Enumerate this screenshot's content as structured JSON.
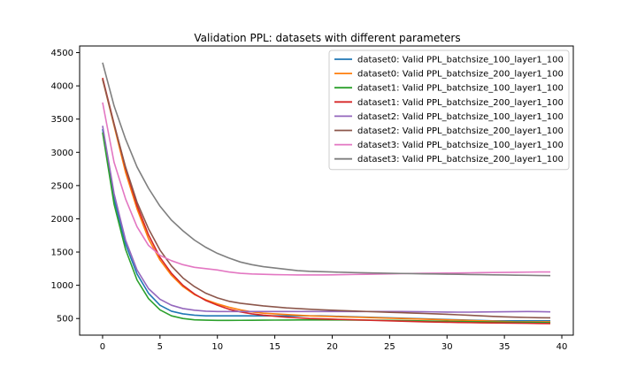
{
  "chart_data": {
    "type": "line",
    "title": "Validation PPL: datasets with different parameters",
    "xlabel": "",
    "ylabel": "",
    "xlim": [
      -2,
      41
    ],
    "ylim": [
      250,
      4600
    ],
    "xticks": [
      0,
      5,
      10,
      15,
      20,
      25,
      30,
      35,
      40
    ],
    "yticks": [
      500,
      1000,
      1500,
      2000,
      2500,
      3000,
      3500,
      4000,
      4500
    ],
    "grid": false,
    "legend_position": "top-right",
    "series": [
      {
        "name": "dataset0: Valid PPL_batchsize_100_layer1_100",
        "color": "#1f77b4",
        "x": [
          0,
          1,
          2,
          3,
          4,
          5,
          6,
          7,
          8,
          9,
          10,
          11,
          12,
          13,
          14,
          15,
          16,
          17,
          18,
          19,
          20,
          21,
          22,
          23,
          24,
          25,
          26,
          27,
          28,
          29,
          30,
          31,
          32,
          33,
          34,
          35,
          36,
          37,
          38,
          39
        ],
        "y": [
          3350,
          2300,
          1620,
          1170,
          880,
          700,
          610,
          570,
          550,
          540,
          540,
          540,
          540,
          540,
          540,
          540,
          540,
          540,
          540,
          540,
          535,
          530,
          525,
          520,
          515,
          510,
          505,
          500,
          495,
          490,
          485,
          480,
          475,
          470,
          465,
          465,
          465,
          465,
          465,
          465
        ]
      },
      {
        "name": "dataset0: Valid PPL_batchsize_200_layer1_100",
        "color": "#ff7f0e",
        "x": [
          0,
          1,
          2,
          3,
          4,
          5,
          6,
          7,
          8,
          9,
          10,
          11,
          12,
          13,
          14,
          15,
          16,
          17,
          18,
          19,
          20,
          21,
          22,
          23,
          24,
          25,
          26,
          27,
          28,
          29,
          30,
          31,
          32,
          33,
          34,
          35,
          36,
          37,
          38,
          39
        ],
        "y": [
          4100,
          3400,
          2700,
          2150,
          1700,
          1380,
          1150,
          980,
          860,
          780,
          720,
          670,
          630,
          600,
          580,
          570,
          560,
          550,
          540,
          535,
          530,
          525,
          520,
          515,
          510,
          505,
          500,
          495,
          490,
          485,
          480,
          475,
          470,
          465,
          460,
          455,
          450,
          450,
          450,
          450
        ]
      },
      {
        "name": "dataset1: Valid PPL_batchsize_100_layer1_100",
        "color": "#2ca02c",
        "x": [
          0,
          1,
          2,
          3,
          4,
          5,
          6,
          7,
          8,
          9,
          10,
          11,
          12,
          13,
          14,
          15,
          16,
          17,
          18,
          19,
          20,
          21,
          22,
          23,
          24,
          25,
          26,
          27,
          28,
          29,
          30,
          31,
          32,
          33,
          34,
          35,
          36,
          37,
          38,
          39
        ],
        "y": [
          3300,
          2220,
          1540,
          1080,
          800,
          630,
          540,
          500,
          480,
          475,
          472,
          472,
          473,
          474,
          475,
          476,
          477,
          478,
          478,
          478,
          478,
          478,
          477,
          476,
          474,
          472,
          470,
          467,
          464,
          461,
          458,
          455,
          452,
          450,
          448,
          446,
          444,
          442,
          440,
          438
        ]
      },
      {
        "name": "dataset1: Valid PPL_batchsize_200_layer1_100",
        "color": "#d62728",
        "x": [
          0,
          1,
          2,
          3,
          4,
          5,
          6,
          7,
          8,
          9,
          10,
          11,
          12,
          13,
          14,
          15,
          16,
          17,
          18,
          19,
          20,
          21,
          22,
          23,
          24,
          25,
          26,
          27,
          28,
          29,
          30,
          31,
          32,
          33,
          34,
          35,
          36,
          37,
          38,
          39
        ],
        "y": [
          4120,
          3430,
          2760,
          2200,
          1760,
          1420,
          1180,
          1000,
          870,
          770,
          700,
          640,
          600,
          570,
          550,
          535,
          520,
          510,
          500,
          495,
          490,
          485,
          480,
          475,
          470,
          465,
          460,
          455,
          450,
          447,
          444,
          441,
          438,
          436,
          434,
          432,
          430,
          428,
          426,
          424
        ]
      },
      {
        "name": "dataset2: Valid PPL_batchsize_100_layer1_100",
        "color": "#9467bd",
        "x": [
          0,
          1,
          2,
          3,
          4,
          5,
          6,
          7,
          8,
          9,
          10,
          11,
          12,
          13,
          14,
          15,
          16,
          17,
          18,
          19,
          20,
          21,
          22,
          23,
          24,
          25,
          26,
          27,
          28,
          29,
          30,
          31,
          32,
          33,
          34,
          35,
          36,
          37,
          38,
          39
        ],
        "y": [
          3400,
          2380,
          1680,
          1230,
          950,
          790,
          700,
          650,
          625,
          610,
          605,
          605,
          605,
          605,
          605,
          605,
          605,
          605,
          605,
          605,
          605,
          605,
          605,
          605,
          605,
          605,
          605,
          603,
          601,
          599,
          597,
          596,
          596,
          598,
          600,
          602,
          604,
          605,
          603,
          600
        ]
      },
      {
        "name": "dataset2: Valid PPL_batchsize_200_layer1_100",
        "color": "#8c564b",
        "x": [
          0,
          1,
          2,
          3,
          4,
          5,
          6,
          7,
          8,
          9,
          10,
          11,
          12,
          13,
          14,
          15,
          16,
          17,
          18,
          19,
          20,
          21,
          22,
          23,
          24,
          25,
          26,
          27,
          28,
          29,
          30,
          31,
          32,
          33,
          34,
          35,
          36,
          37,
          38,
          39
        ],
        "y": [
          4100,
          3420,
          2780,
          2250,
          1850,
          1530,
          1290,
          1110,
          980,
          880,
          810,
          760,
          730,
          710,
          690,
          675,
          660,
          650,
          640,
          632,
          625,
          618,
          612,
          606,
          600,
          594,
          588,
          582,
          576,
          570,
          563,
          556,
          548,
          540,
          532,
          525,
          520,
          516,
          512,
          510
        ]
      },
      {
        "name": "dataset3: Valid PPL_batchsize_100_layer1_100",
        "color": "#e377c2",
        "x": [
          0,
          1,
          2,
          3,
          4,
          5,
          6,
          7,
          8,
          9,
          10,
          11,
          12,
          13,
          14,
          15,
          16,
          17,
          18,
          19,
          20,
          21,
          22,
          23,
          24,
          25,
          26,
          27,
          28,
          29,
          30,
          31,
          32,
          33,
          34,
          35,
          36,
          37,
          38,
          39
        ],
        "y": [
          3750,
          2850,
          2300,
          1880,
          1600,
          1450,
          1370,
          1310,
          1270,
          1250,
          1230,
          1200,
          1180,
          1170,
          1165,
          1160,
          1158,
          1156,
          1155,
          1155,
          1157,
          1160,
          1163,
          1166,
          1169,
          1172,
          1175,
          1178,
          1180,
          1182,
          1184,
          1186,
          1188,
          1190,
          1192,
          1194,
          1196,
          1198,
          1200,
          1200
        ]
      },
      {
        "name": "dataset3: Valid PPL_batchsize_200_layer1_100",
        "color": "#7f7f7f",
        "x": [
          0,
          1,
          2,
          3,
          4,
          5,
          6,
          7,
          8,
          9,
          10,
          11,
          12,
          13,
          14,
          15,
          16,
          17,
          18,
          19,
          20,
          21,
          22,
          23,
          24,
          25,
          26,
          27,
          28,
          29,
          30,
          31,
          32,
          33,
          34,
          35,
          36,
          37,
          38,
          39
        ],
        "y": [
          4350,
          3700,
          3200,
          2780,
          2460,
          2190,
          1980,
          1820,
          1680,
          1570,
          1480,
          1410,
          1350,
          1310,
          1280,
          1260,
          1240,
          1220,
          1210,
          1205,
          1200,
          1195,
          1190,
          1187,
          1184,
          1180,
          1178,
          1175,
          1172,
          1170,
          1167,
          1165,
          1162,
          1160,
          1157,
          1155,
          1152,
          1150,
          1147,
          1145
        ]
      }
    ]
  }
}
